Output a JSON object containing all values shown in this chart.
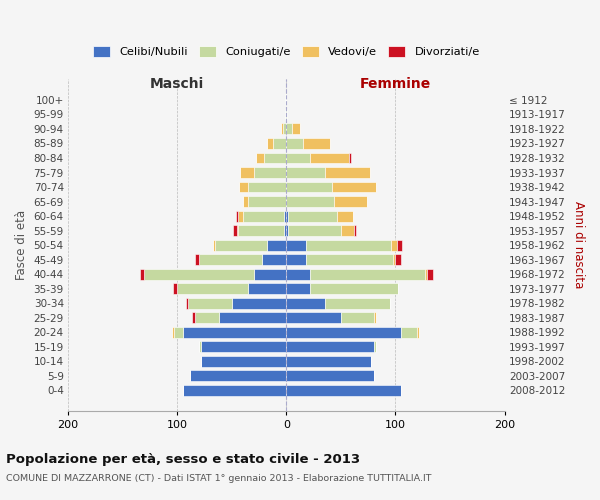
{
  "age_groups": [
    "0-4",
    "5-9",
    "10-14",
    "15-19",
    "20-24",
    "25-29",
    "30-34",
    "35-39",
    "40-44",
    "45-49",
    "50-54",
    "55-59",
    "60-64",
    "65-69",
    "70-74",
    "75-79",
    "80-84",
    "85-89",
    "90-94",
    "95-99",
    "100+"
  ],
  "birth_years": [
    "2008-2012",
    "2003-2007",
    "1998-2002",
    "1993-1997",
    "1988-1992",
    "1983-1987",
    "1978-1982",
    "1973-1977",
    "1968-1972",
    "1963-1967",
    "1958-1962",
    "1953-1957",
    "1948-1952",
    "1943-1947",
    "1938-1942",
    "1933-1937",
    "1928-1932",
    "1923-1927",
    "1918-1922",
    "1913-1917",
    "≤ 1912"
  ],
  "colors": {
    "celibi": "#4472C4",
    "coniugati": "#c5d9a0",
    "vedovi": "#f0c060",
    "divorziati": "#cc1122"
  },
  "males": {
    "celibi": [
      95,
      88,
      78,
      78,
      95,
      62,
      50,
      35,
      30,
      22,
      18,
      2,
      2,
      0,
      0,
      0,
      0,
      0,
      0,
      0,
      0
    ],
    "coniugati": [
      0,
      0,
      0,
      2,
      8,
      22,
      40,
      65,
      100,
      58,
      47,
      42,
      38,
      35,
      35,
      30,
      20,
      12,
      3,
      1,
      1
    ],
    "vedovi": [
      0,
      0,
      0,
      0,
      2,
      0,
      0,
      0,
      0,
      0,
      2,
      1,
      4,
      5,
      8,
      12,
      8,
      6,
      2,
      0,
      0
    ],
    "divorziati": [
      0,
      0,
      0,
      0,
      0,
      2,
      2,
      4,
      4,
      4,
      0,
      4,
      2,
      0,
      0,
      0,
      0,
      0,
      0,
      0,
      0
    ]
  },
  "females": {
    "celibi": [
      105,
      80,
      78,
      80,
      105,
      50,
      35,
      22,
      22,
      18,
      18,
      2,
      2,
      0,
      0,
      0,
      0,
      0,
      0,
      0,
      0
    ],
    "coniugati": [
      0,
      0,
      0,
      2,
      15,
      30,
      60,
      80,
      105,
      80,
      78,
      48,
      44,
      44,
      42,
      35,
      22,
      15,
      5,
      1,
      0
    ],
    "vedovi": [
      0,
      0,
      0,
      0,
      2,
      2,
      0,
      0,
      2,
      2,
      5,
      12,
      15,
      30,
      40,
      42,
      35,
      25,
      8,
      0,
      0
    ],
    "divorziati": [
      0,
      0,
      0,
      0,
      0,
      0,
      0,
      0,
      5,
      5,
      5,
      2,
      0,
      0,
      0,
      0,
      2,
      0,
      0,
      0,
      0
    ]
  },
  "title": "Popolazione per età, sesso e stato civile - 2013",
  "subtitle": "COMUNE DI MAZZARRONE (CT) - Dati ISTAT 1° gennaio 2013 - Elaborazione TUTTITALIA.IT",
  "maschi_label": "Maschi",
  "femmine_label": "Femmine",
  "ylabel_left": "Fasce di età",
  "ylabel_right": "Anni di nascita",
  "xlim": 200,
  "legend_labels": [
    "Celibi/Nubili",
    "Coniugati/e",
    "Vedovi/e",
    "Divorziati/e"
  ],
  "bg_color": "#f5f5f5",
  "grid_color": "#bbbbbb",
  "bar_edge_color": "#ffffff"
}
